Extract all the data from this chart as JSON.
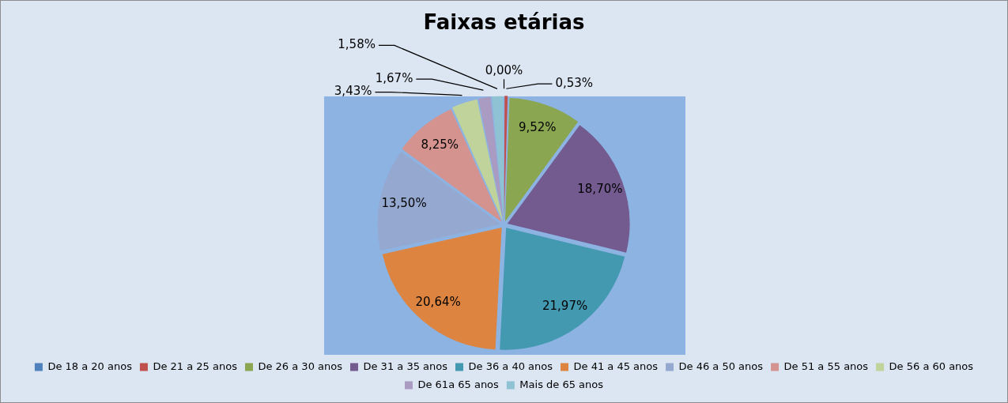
{
  "chart_data": {
    "type": "pie",
    "title": "Faixas etárias",
    "categories": [
      "De 18 a 20 anos",
      "De 21 a 25 anos",
      "De 26 a 30 anos",
      "De 31 a 35 anos",
      "De 36 a 40 anos",
      "De 41 a 45 anos",
      "De 46 a 50 anos",
      "De 51 a 55 anos",
      "De 56 a 60 anos",
      "De 61a 65 anos",
      "Mais de 65 anos"
    ],
    "values": [
      0,
      0.53,
      9.52,
      18.7,
      21.97,
      20.64,
      13.5,
      8.25,
      3.43,
      1.67,
      1.58
    ],
    "value_labels": [
      "0,00%",
      "0,53%",
      "9,52%",
      "18,70%",
      "21,97%",
      "20,64%",
      "13,50%",
      "8,25%",
      "3,43%",
      "1,67%",
      "1,58%"
    ],
    "colors": [
      "#4f81bd",
      "#c0504d",
      "#8aa650",
      "#735a8f",
      "#4299b0",
      "#dd8540",
      "#94a8d0",
      "#d4938f",
      "#bfd39a",
      "#a99bc2",
      "#8fc3d4"
    ],
    "legend": "bottom"
  }
}
